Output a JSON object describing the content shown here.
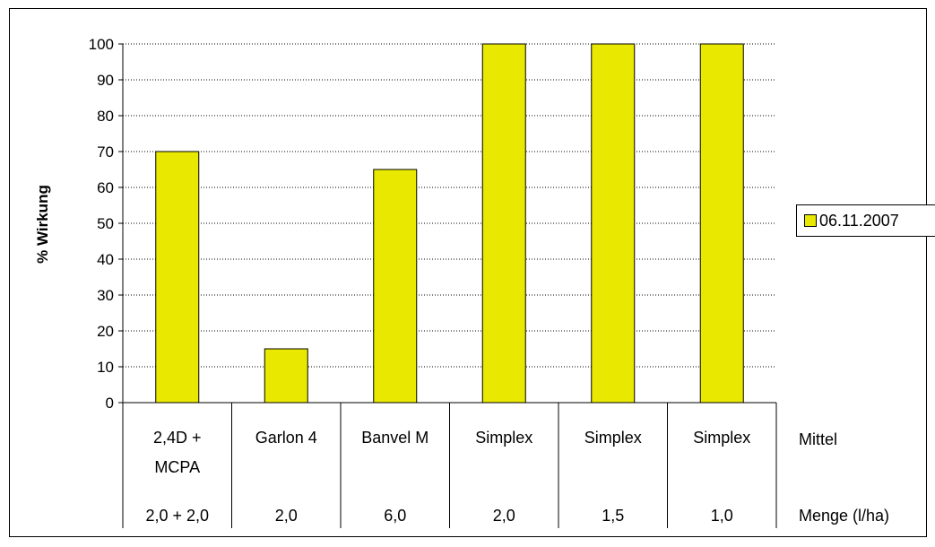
{
  "chart_data": {
    "type": "bar",
    "ylabel": "% Wirkung",
    "ylim": [
      0,
      100
    ],
    "yticks": [
      0,
      10,
      20,
      30,
      40,
      50,
      60,
      70,
      80,
      90,
      100
    ],
    "grid": true,
    "legend_position": "right",
    "categories": [
      "2,4D + MCPA",
      "Garlon 4",
      "Banvel M",
      "Simplex",
      "Simplex",
      "Simplex"
    ],
    "category_lines": [
      [
        "2,4D +",
        "MCPA"
      ],
      [
        "Garlon 4"
      ],
      [
        "Banvel M"
      ],
      [
        "Simplex"
      ],
      [
        "Simplex"
      ],
      [
        "Simplex"
      ]
    ],
    "amounts": [
      "2,0 + 2,0",
      "2,0",
      "6,0",
      "2,0",
      "1,5",
      "1,0"
    ],
    "row_labels": {
      "mittel": "Mittel",
      "menge": "Menge (l/ha)"
    },
    "series": [
      {
        "name": "06.11.2007",
        "color": "#e8e800",
        "values": [
          70,
          15,
          65,
          100,
          100,
          100
        ]
      }
    ]
  }
}
